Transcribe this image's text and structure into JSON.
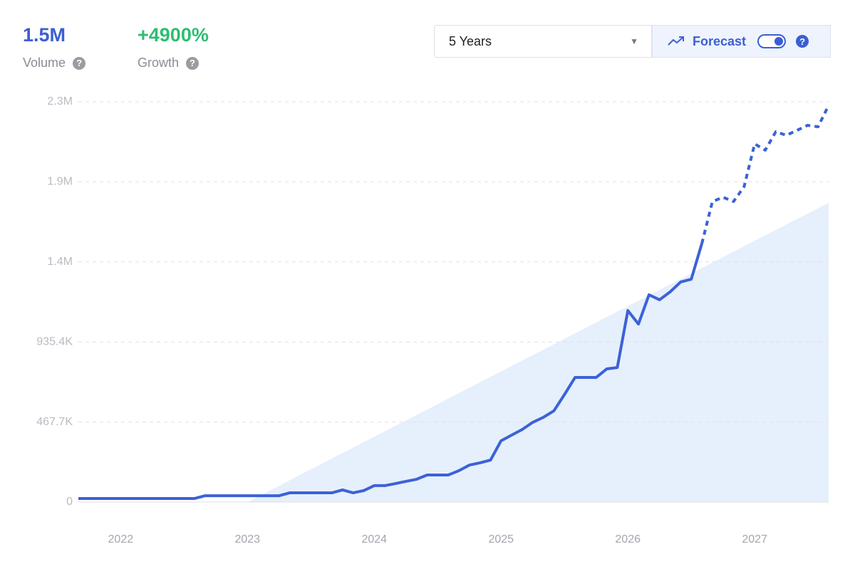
{
  "header": {
    "volume": "1.5M",
    "volume_label": "Volume",
    "growth": "+4900%",
    "growth_label": "Growth",
    "range": "5 Years",
    "forecast": "Forecast"
  },
  "chart_data": {
    "type": "line",
    "categories": [
      null,
      null,
      null,
      null,
      "2022",
      null,
      null,
      null,
      null,
      null,
      null,
      null,
      null,
      null,
      null,
      null,
      "2023",
      null,
      null,
      null,
      null,
      null,
      null,
      null,
      null,
      null,
      null,
      null,
      "2024",
      null,
      null,
      null,
      null,
      null,
      null,
      null,
      null,
      null,
      null,
      null,
      "2025",
      null,
      null,
      null,
      null,
      null,
      null,
      null,
      null,
      null,
      null,
      null,
      "2026",
      null,
      null,
      null,
      null,
      null,
      null,
      null,
      null,
      null,
      null,
      null,
      "2027",
      null,
      null,
      null,
      null,
      null,
      null,
      null
    ],
    "series": [
      {
        "color": "#3b62d6",
        "style": "solid",
        "values": [
          21000,
          21000,
          21000,
          21000,
          21000,
          21000,
          21000,
          21000,
          21000,
          21000,
          21000,
          21000,
          37000,
          37000,
          37000,
          37000,
          37000,
          37000,
          37000,
          37000,
          54000,
          54000,
          54000,
          54000,
          54000,
          71000,
          54000,
          67000,
          96000,
          96000,
          108000,
          121000,
          133000,
          158000,
          158000,
          158000,
          183000,
          216000,
          229000,
          245000,
          358000,
          391000,
          424000,
          466000,
          495000,
          533000,
          628000,
          728000,
          728000,
          728000,
          778000,
          786000,
          1119000,
          1040000,
          1211000,
          1182000,
          1228000,
          1286000,
          1302000,
          1510000,
          null,
          null,
          null,
          null,
          null,
          null,
          null,
          null,
          null,
          null,
          null,
          null
        ]
      },
      {
        "color": "#3b62d6",
        "style": "dashed",
        "values": [
          null,
          null,
          null,
          null,
          null,
          null,
          null,
          null,
          null,
          null,
          null,
          null,
          null,
          null,
          null,
          null,
          null,
          null,
          null,
          null,
          null,
          null,
          null,
          null,
          null,
          null,
          null,
          null,
          null,
          null,
          null,
          null,
          null,
          null,
          null,
          null,
          null,
          null,
          null,
          null,
          null,
          null,
          null,
          null,
          null,
          null,
          null,
          null,
          null,
          null,
          null,
          null,
          null,
          null,
          null,
          null,
          null,
          null,
          null,
          1510000,
          1756000,
          1781000,
          1756000,
          1843000,
          2093000,
          2056000,
          2164000,
          2143000,
          2172000,
          2201000,
          2193000,
          2318000
        ]
      }
    ],
    "trend": {
      "color": "#e6effc",
      "values": [
        null,
        null,
        null,
        null,
        null,
        null,
        null,
        null,
        null,
        null,
        null,
        null,
        null,
        null,
        null,
        null,
        0,
        31800,
        63600,
        95400,
        127200,
        159000,
        190800,
        222600,
        254400,
        286200,
        318000,
        349800,
        381600,
        413400,
        445200,
        477000,
        508800,
        540600,
        572400,
        604200,
        636000,
        667800,
        699600,
        731400,
        763200,
        795000,
        826800,
        858600,
        890400,
        922200,
        954000,
        985800,
        1017600,
        1049400,
        1081200,
        1113000,
        1144800,
        1176600,
        1208400,
        1240200,
        1272000,
        1303800,
        1335600,
        1367400,
        1399200,
        1431000,
        1462800,
        1494600,
        1526400,
        1558200,
        1590000,
        1621800,
        1653600,
        1685400,
        1717200,
        1749000
      ]
    },
    "ylim": [
      0,
      2338500
    ],
    "yticks": [
      0,
      {
        "value": 467700,
        "label": "467.7K"
      },
      {
        "value": 935400,
        "label": "935.4K"
      },
      {
        "value": 1403100,
        "label": "1.4M"
      },
      {
        "value": 1870800,
        "label": "1.9M"
      },
      {
        "value": 2338500,
        "label": "2.3M"
      }
    ],
    "grid": true
  }
}
